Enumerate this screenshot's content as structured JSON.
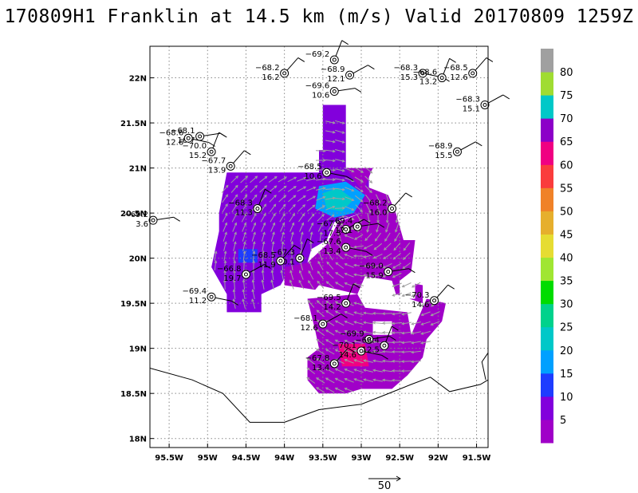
{
  "title": "170809H1 Franklin at 14.5 km (m/s) Valid 20170809 1259Z",
  "chart_data": {
    "type": "map",
    "x_ticks": [
      "95.5W",
      "95W",
      "94.5W",
      "94W",
      "93.5W",
      "93W",
      "92.5W",
      "92W",
      "91.5W"
    ],
    "x_values": [
      -95.5,
      -95,
      -94.5,
      -94,
      -93.5,
      -93,
      -92.5,
      -92,
      -91.5
    ],
    "y_ticks": [
      "22N",
      "21.5N",
      "21N",
      "20.5N",
      "20N",
      "19.5N",
      "19N",
      "18.5N",
      "18N"
    ],
    "y_values": [
      22,
      21.5,
      21,
      20.5,
      20,
      19.5,
      19,
      18.5,
      18
    ],
    "xlim": [
      -95.75,
      -91.35
    ],
    "ylim": [
      17.9,
      22.35
    ],
    "grid": true,
    "colorbar": {
      "labels": [
        "5",
        "10",
        "15",
        "20",
        "25",
        "30",
        "35",
        "40",
        "45",
        "50",
        "55",
        "60",
        "65",
        "70",
        "75",
        "80"
      ],
      "colors": [
        "#a000c8",
        "#8200dc",
        "#1e3cff",
        "#00a0ff",
        "#00c8c8",
        "#00d28c",
        "#00dc00",
        "#a0e632",
        "#e6dc32",
        "#e6af2d",
        "#f08228",
        "#fa3c3c",
        "#f00082",
        "#8c00c8",
        "#00c8c8",
        "#a0dc32",
        "#a0a0a0"
      ]
    },
    "scale_vector": {
      "label": "50"
    },
    "dropsondes": [
      {
        "temp": "−69.2",
        "wind": "",
        "lon": -93.35,
        "lat": 22.2
      },
      {
        "temp": "−68.2",
        "wind": "16.2",
        "lon": -94.0,
        "lat": 22.05
      },
      {
        "temp": "−68.9",
        "wind": "12.1",
        "lon": -93.15,
        "lat": 22.03
      },
      {
        "temp": "−69.6",
        "wind": "10.6",
        "lon": -93.35,
        "lat": 21.85
      },
      {
        "temp": "−68.3",
        "wind": "15.3",
        "lon": -92.2,
        "lat": 22.05
      },
      {
        "temp": "−68.6",
        "wind": "13.2",
        "lon": -91.95,
        "lat": 22.0
      },
      {
        "temp": "−68.5",
        "wind": "12.6",
        "lon": -91.55,
        "lat": 22.05
      },
      {
        "temp": "−68.3",
        "wind": "15.1",
        "lon": -91.35,
        "lat": 21.7
      },
      {
        "temp": "−68.1",
        "wind": "16.7",
        "lon": -95.1,
        "lat": 21.35
      },
      {
        "temp": "−68.6",
        "wind": "12.6",
        "lon": -95.25,
        "lat": 21.33
      },
      {
        "temp": "−70.0",
        "wind": "15.2",
        "lon": -94.95,
        "lat": 21.18
      },
      {
        "temp": "−67.7",
        "wind": "13.9",
        "lon": -94.7,
        "lat": 21.02
      },
      {
        "temp": "−68.9",
        "wind": "15.5",
        "lon": -91.75,
        "lat": 21.18
      },
      {
        "temp": "−69.2",
        "wind": "3.6",
        "lon": -95.75,
        "lat": 20.42
      },
      {
        "temp": "−68.5",
        "wind": "10.6",
        "lon": -93.45,
        "lat": 20.95
      },
      {
        "temp": "−68.3",
        "wind": "11.3",
        "lon": -94.35,
        "lat": 20.55
      },
      {
        "temp": "−68.2",
        "wind": "16.0",
        "lon": -92.6,
        "lat": 20.55
      },
      {
        "temp": "−67.9",
        "wind": "17.3",
        "lon": -93.2,
        "lat": 20.32
      },
      {
        "temp": "−69.4",
        "wind": "17.1",
        "lon": -93.05,
        "lat": 20.35
      },
      {
        "temp": "−67.6",
        "wind": "13.4",
        "lon": -93.2,
        "lat": 20.12
      },
      {
        "temp": "−67.3",
        "wind": "20.1",
        "lon": -93.8,
        "lat": 20.0
      },
      {
        "temp": "−68.5",
        "wind": "11.9",
        "lon": -94.05,
        "lat": 19.97
      },
      {
        "temp": "−66.8",
        "wind": "19.7",
        "lon": -94.5,
        "lat": 19.82
      },
      {
        "temp": "−69.0",
        "wind": "15.9",
        "lon": -92.65,
        "lat": 19.85
      },
      {
        "temp": "−69.4",
        "wind": "11.2",
        "lon": -94.95,
        "lat": 19.57
      },
      {
        "temp": "−69.5",
        "wind": "14.2",
        "lon": -93.2,
        "lat": 19.5
      },
      {
        "temp": "−70.3",
        "wind": "14.6",
        "lon": -92.05,
        "lat": 19.53
      },
      {
        "temp": "−68.1",
        "wind": "12.6",
        "lon": -93.5,
        "lat": 19.27
      },
      {
        "temp": "−69.9",
        "wind": "",
        "lon": -92.9,
        "lat": 19.1
      },
      {
        "temp": "−70.1",
        "wind": "14.6",
        "lon": -93.0,
        "lat": 18.97
      },
      {
        "temp": "−68.4",
        "wind": "12.5",
        "lon": -92.7,
        "lat": 19.03
      },
      {
        "temp": "−67.8",
        "wind": "13.4",
        "lon": -93.35,
        "lat": 18.83
      }
    ]
  }
}
